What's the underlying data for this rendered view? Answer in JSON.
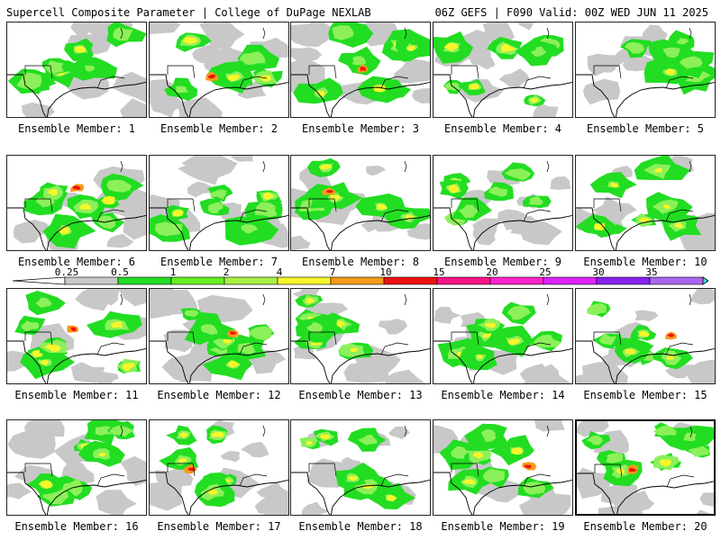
{
  "header": {
    "title": "Supercell Composite Parameter | College of DuPage NEXLAB",
    "run": "06Z GEFS | F090 Valid: 00Z WED JUN 11 2025"
  },
  "legend": {
    "labels": [
      "0.25",
      "0.5",
      "1",
      "2",
      "4",
      "7",
      "10",
      "15",
      "20",
      "25",
      "30",
      "35"
    ],
    "colors": [
      "#c8c8c8",
      "#22dd22",
      "#66ee22",
      "#aaf044",
      "#f6f62a",
      "#f59a1a",
      "#ee1111",
      "#ff1488",
      "#ff22cc",
      "#dd22ff",
      "#8822ee",
      "#aa66ee",
      "#44e0ee"
    ]
  },
  "colors": {
    "gray": "#c8c8c8",
    "green": "#22dd22",
    "lightgreen": "#8cf05a",
    "yellow": "#f6f62a",
    "orange": "#f59a1a",
    "red": "#ee1111"
  },
  "members": [
    {
      "label": "Ensemble Member: 1"
    },
    {
      "label": "Ensemble Member: 2"
    },
    {
      "label": "Ensemble Member: 3"
    },
    {
      "label": "Ensemble Member: 4"
    },
    {
      "label": "Ensemble Member: 5"
    },
    {
      "label": "Ensemble Member: 6"
    },
    {
      "label": "Ensemble Member: 7"
    },
    {
      "label": "Ensemble Member: 8"
    },
    {
      "label": "Ensemble Member: 9"
    },
    {
      "label": "Ensemble Member: 10"
    },
    {
      "label": "Ensemble Member: 11"
    },
    {
      "label": "Ensemble Member: 12"
    },
    {
      "label": "Ensemble Member: 13"
    },
    {
      "label": "Ensemble Member: 14"
    },
    {
      "label": "Ensemble Member: 15"
    },
    {
      "label": "Ensemble Member: 16"
    },
    {
      "label": "Ensemble Member: 17"
    },
    {
      "label": "Ensemble Member: 18"
    },
    {
      "label": "Ensemble Member: 19"
    },
    {
      "label": "Ensemble Member: 20"
    }
  ]
}
